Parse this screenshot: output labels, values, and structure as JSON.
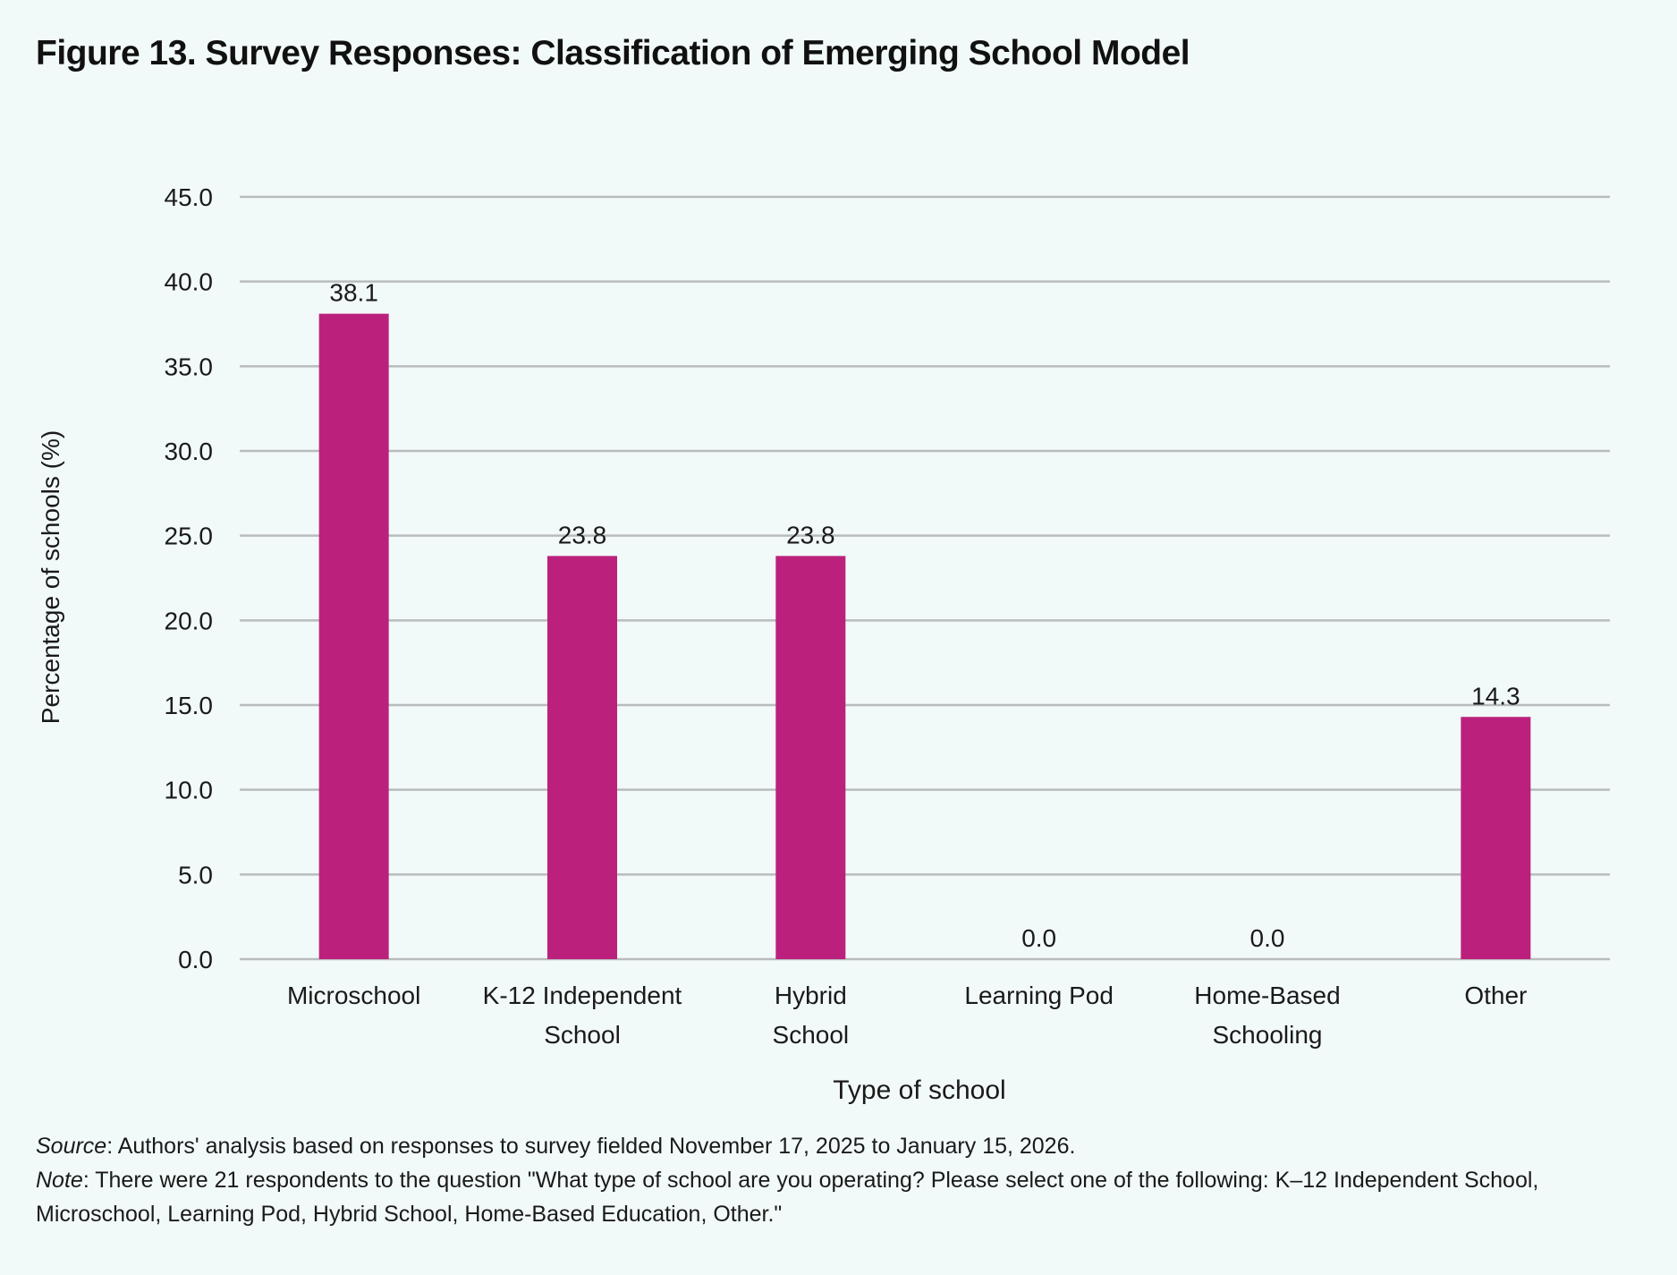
{
  "title": "Figure 13. Survey Responses: Classification of Emerging School Model",
  "chart_data": {
    "type": "bar",
    "categories": [
      [
        "Microschool"
      ],
      [
        "K-12 Independent",
        "School"
      ],
      [
        "Hybrid",
        "School"
      ],
      [
        "Learning Pod"
      ],
      [
        "Home-Based",
        "Schooling"
      ],
      [
        "Other"
      ]
    ],
    "values": [
      38.1,
      23.8,
      23.8,
      0.0,
      0.0,
      14.3
    ],
    "value_labels": [
      "38.1",
      "23.8",
      "23.8",
      "0.0",
      "0.0",
      "14.3"
    ],
    "xlabel": "Type of school",
    "ylabel": "Percentage of schools (%)",
    "ylim": [
      0,
      45
    ],
    "yticks": [
      0,
      5,
      10,
      15,
      20,
      25,
      30,
      35,
      40,
      45
    ],
    "ytick_labels": [
      "0.0",
      "5.0",
      "10.0",
      "15.0",
      "20.0",
      "25.0",
      "30.0",
      "35.0",
      "40.0",
      "45.0"
    ],
    "grid": true,
    "bar_color": "#bb217c",
    "grid_color": "#b9bcbc"
  },
  "notes": {
    "source_label": "Source",
    "source_text": ": Authors' analysis based on responses to survey fielded November 17, 2025 to January 15, 2026.",
    "note_label": "Note",
    "note_text": ": There were 21 respondents to the question \"What type of school are you operating? Please select one of the following: K–12 Independent School, Microschool, Learning Pod, Hybrid School, Home-Based Education, Other.\""
  }
}
